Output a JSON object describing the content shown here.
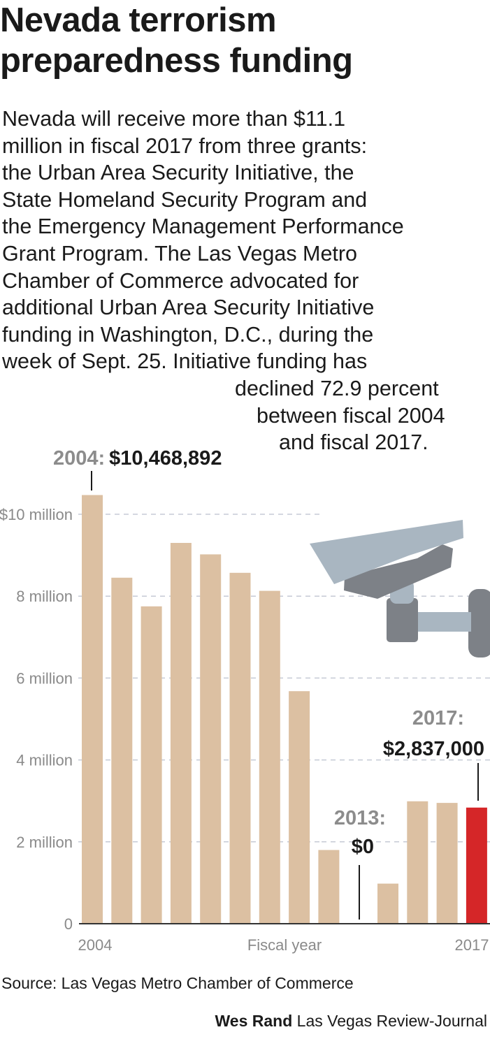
{
  "title_lines": [
    "Nevada terrorism",
    "preparedness funding"
  ],
  "description_lines": [
    "Nevada will receive more than $11.1",
    "million in fiscal 2017 from three grants:",
    "the Urban Area Security Initiative, the",
    "State Homeland Security Program and",
    "the Emergency Management Performance",
    "Grant Program. The Las Vegas Metro",
    "Chamber of Commerce advocated for",
    "additional Urban Area Security Initiative",
    "funding in Washington, D.C., during the",
    "week of Sept. 25. Initiative funding has",
    "declined 72.9 percent",
    "between fiscal 2004",
    "and fiscal 2017."
  ],
  "chart_data": {
    "type": "bar",
    "categories": [
      "2004",
      "2005",
      "2006",
      "2007",
      "2008",
      "2009",
      "2010",
      "2011",
      "2012",
      "2013",
      "2014",
      "2015",
      "2016",
      "2017"
    ],
    "values": [
      10468892,
      8450000,
      7750000,
      9300000,
      9020000,
      8570000,
      8130000,
      5680000,
      1800000,
      0,
      980000,
      2990000,
      2950000,
      2837000
    ],
    "ylim": [
      0,
      10000000
    ],
    "yticks": [
      {
        "value": 10000000,
        "label": "$10 million"
      },
      {
        "value": 8000000,
        "label": "8 million"
      },
      {
        "value": 6000000,
        "label": "6 million"
      },
      {
        "value": 4000000,
        "label": "4 million"
      },
      {
        "value": 2000000,
        "label": "2 million"
      },
      {
        "value": 0,
        "label": "0"
      }
    ],
    "x_tick_labels": {
      "first": "2004",
      "last": "2017"
    },
    "xlabel": "Fiscal year",
    "grid": true,
    "bar_color": "#dcc0a2",
    "highlight_color": "#d52628",
    "highlight_index": 13,
    "annotations": {
      "a2004": {
        "year": "2004:",
        "amount": "$10,468,892"
      },
      "a2013": {
        "year": "2013:",
        "amount": "$0"
      },
      "a2017": {
        "year": "2017:",
        "amount": "$2,837,000"
      }
    }
  },
  "illustration": {
    "icon": "security-camera-icon",
    "colors": [
      "#a9b6c1",
      "#7d8187"
    ]
  },
  "source": "Source: Las Vegas Metro Chamber of Commerce",
  "credit": {
    "author": "Wes Rand",
    "outlet": "Las Vegas Review-Journal"
  }
}
